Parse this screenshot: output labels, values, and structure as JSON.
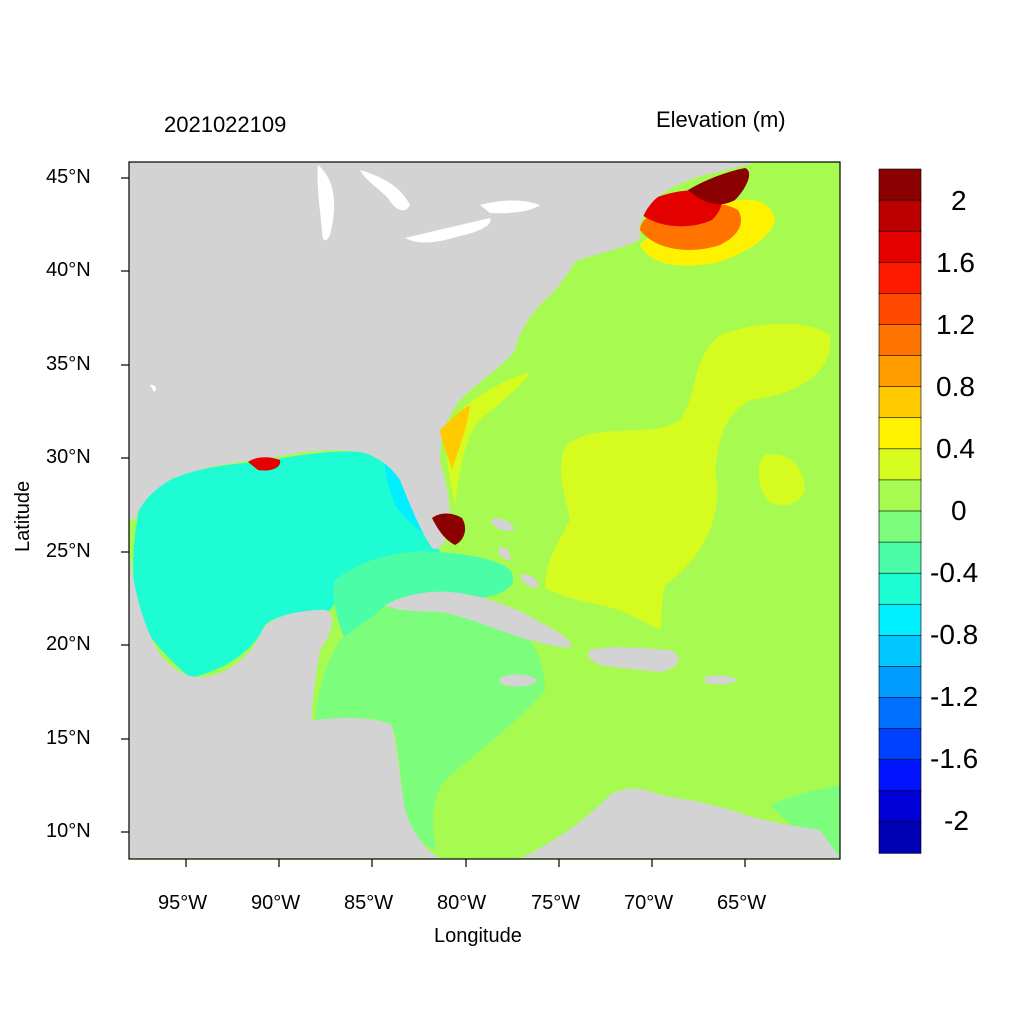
{
  "header": {
    "timestamp": "2021022109",
    "variable_title": "Elevation (m)"
  },
  "axes": {
    "xlabel": "Longitude",
    "ylabel": "Latitude",
    "x_ticks": [
      "95°W",
      "90°W",
      "85°W",
      "80°W",
      "75°W",
      "70°W",
      "65°W"
    ],
    "y_ticks": [
      "45°N",
      "40°N",
      "35°N",
      "30°N",
      "25°N",
      "20°N",
      "15°N",
      "10°N"
    ]
  },
  "map": {
    "region": "Gulf of Mexico, Caribbean Sea and western North Atlantic",
    "lon_range": [
      -98,
      -60
    ],
    "lat_range": [
      8.5,
      46
    ],
    "land_color": "#d3d3d3",
    "ocean_background_color": "#a7fb50"
  },
  "colorbar": {
    "labels": [
      "2",
      "1.6",
      "1.2",
      "0.8",
      "0.4",
      "0",
      "-0.4",
      "-0.8",
      "-1.2",
      "-1.6",
      "-2"
    ],
    "colors_top_to_bottom": [
      "#8b0000",
      "#bb0000",
      "#e50000",
      "#ff1a00",
      "#ff4a00",
      "#ff7400",
      "#ff9c00",
      "#ffcb00",
      "#fff200",
      "#d6fb1f",
      "#a7fb50",
      "#7dfd7c",
      "#4bfda6",
      "#1dfcd3",
      "#00f0ff",
      "#00c8ff",
      "#009cff",
      "#0070ff",
      "#0040ff",
      "#0014ff",
      "#0000d7",
      "#0000b4"
    ]
  }
}
